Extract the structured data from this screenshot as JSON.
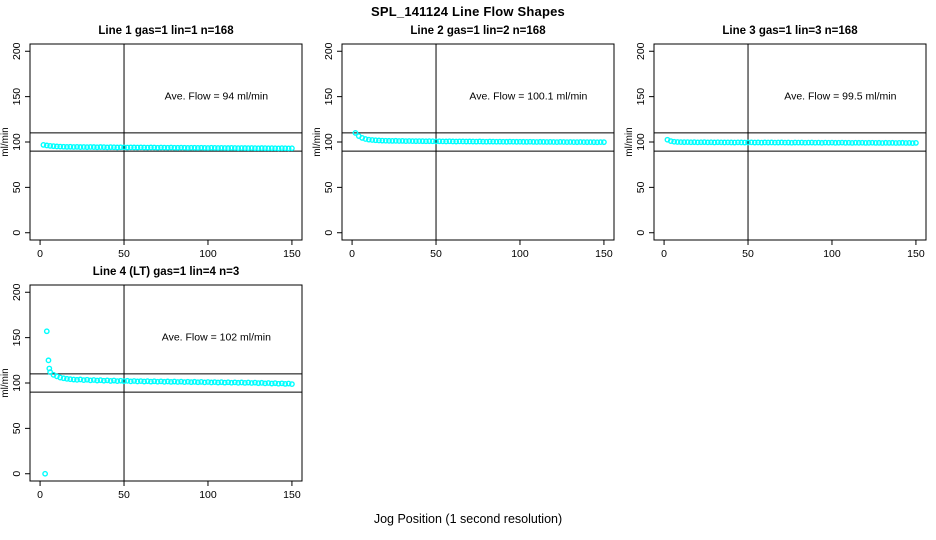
{
  "page": {
    "title": "SPL_141124  Line Flow Shapes",
    "xlabel": "Jog Position (1 second resolution)",
    "background": "#ffffff",
    "axis_color": "#000000",
    "point_color": "#00ffff"
  },
  "chart_data": [
    {
      "type": "scatter",
      "title": "Line 1 gas=1 lin=1 n=168",
      "annotation": "Ave. Flow =  94  ml/min",
      "annotation_x": 105,
      "annotation_y": 150,
      "ylabel": "ml/min",
      "xticks": [
        0,
        50,
        100,
        150
      ],
      "yticks": [
        0,
        50,
        100,
        150,
        200
      ],
      "xlim": [
        -6,
        156
      ],
      "ylim": [
        -8,
        208
      ],
      "vline_x": 50,
      "hlines_y": [
        90,
        110
      ],
      "marker": "open-circle",
      "marker_color": "#00ffff",
      "x_start": 2,
      "x_step": 2,
      "y": [
        96.8,
        96.2,
        95.7,
        95.4,
        95.1,
        94.9,
        94.8,
        94.6,
        94.7,
        94.5,
        94.6,
        94.4,
        94.5,
        94.3,
        94.5,
        94.4,
        94.2,
        94.4,
        94.3,
        94.1,
        94.3,
        94.2,
        94.0,
        94.2,
        94.1,
        93.9,
        94.1,
        94.0,
        93.9,
        94.1,
        93.9,
        93.8,
        94.0,
        93.9,
        93.7,
        93.9,
        93.8,
        93.7,
        93.9,
        93.7,
        93.6,
        93.8,
        93.7,
        93.5,
        93.7,
        93.6,
        93.5,
        93.7,
        93.5,
        93.4,
        93.6,
        93.5,
        93.4,
        93.5,
        93.4,
        93.3,
        93.5,
        93.4,
        93.2,
        93.4,
        93.3,
        93.2,
        93.4,
        93.2,
        93.1,
        93.3,
        93.2,
        93.1,
        93.2,
        93.1,
        93.0,
        93.2,
        93.1,
        93.0,
        93.1
      ],
      "extra_points": []
    },
    {
      "type": "scatter",
      "title": "Line 2 gas=1 lin=2 n=168",
      "annotation": "Ave. Flow =  100.1  ml/min",
      "annotation_x": 105,
      "annotation_y": 150,
      "ylabel": "ml/min",
      "xticks": [
        0,
        50,
        100,
        150
      ],
      "yticks": [
        0,
        50,
        100,
        150,
        200
      ],
      "xlim": [
        -6,
        156
      ],
      "ylim": [
        -8,
        208
      ],
      "vline_x": 50,
      "hlines_y": [
        90,
        110
      ],
      "marker": "open-circle",
      "marker_color": "#00ffff",
      "x_start": 2,
      "x_step": 2,
      "y": [
        110.0,
        106.5,
        104.5,
        103.3,
        102.6,
        102.2,
        101.9,
        101.7,
        101.5,
        101.4,
        101.3,
        101.2,
        101.3,
        101.1,
        101.2,
        101.0,
        101.1,
        101.0,
        100.9,
        101.0,
        100.9,
        100.8,
        100.9,
        100.8,
        100.7,
        100.8,
        100.7,
        100.6,
        100.8,
        100.6,
        100.5,
        100.7,
        100.6,
        100.5,
        100.6,
        100.5,
        100.4,
        100.6,
        100.4,
        100.3,
        100.5,
        100.4,
        100.3,
        100.4,
        100.3,
        100.2,
        100.4,
        100.3,
        100.2,
        100.3,
        100.2,
        100.1,
        100.3,
        100.1,
        100.0,
        100.2,
        100.1,
        100.0,
        100.1,
        100.0,
        99.9,
        100.1,
        100.0,
        99.9,
        100.0,
        99.9,
        99.8,
        100.0,
        99.9,
        99.8,
        99.9,
        99.8,
        99.7,
        99.9,
        99.8
      ],
      "extra_points": []
    },
    {
      "type": "scatter",
      "title": "Line 3 gas=1 lin=3 n=168",
      "annotation": "Ave. Flow =  99.5  ml/min",
      "annotation_x": 105,
      "annotation_y": 150,
      "ylabel": "ml/min",
      "xticks": [
        0,
        50,
        100,
        150
      ],
      "yticks": [
        0,
        50,
        100,
        150,
        200
      ],
      "xlim": [
        -6,
        156
      ],
      "ylim": [
        -8,
        208
      ],
      "vline_x": 50,
      "hlines_y": [
        90,
        110
      ],
      "marker": "open-circle",
      "marker_color": "#00ffff",
      "x_start": 2,
      "x_step": 2,
      "y": [
        102.5,
        101.0,
        100.3,
        100.0,
        99.9,
        99.8,
        99.9,
        99.7,
        99.8,
        99.6,
        99.7,
        99.8,
        99.6,
        99.7,
        99.5,
        99.7,
        99.6,
        99.5,
        99.6,
        99.5,
        99.4,
        99.6,
        99.5,
        99.4,
        99.5,
        99.6,
        99.4,
        99.5,
        99.3,
        99.5,
        99.4,
        99.5,
        99.3,
        99.4,
        99.5,
        99.3,
        99.4,
        99.2,
        99.4,
        99.3,
        99.4,
        99.2,
        99.3,
        99.4,
        99.2,
        99.3,
        99.1,
        99.3,
        99.2,
        99.3,
        99.1,
        99.2,
        99.3,
        99.1,
        99.2,
        99.0,
        99.2,
        99.1,
        99.2,
        99.0,
        99.1,
        99.2,
        99.0,
        99.1,
        98.9,
        99.1,
        99.0,
        99.1,
        98.9,
        99.0,
        99.1,
        98.9,
        99.0,
        98.8,
        99.0
      ],
      "extra_points": []
    },
    {
      "type": "scatter",
      "title": "Line 4 (LT) gas=1 lin=4 n=3",
      "annotation": "Ave. Flow =  102  ml/min",
      "annotation_x": 105,
      "annotation_y": 150,
      "ylabel": "ml/min",
      "xticks": [
        0,
        50,
        100,
        150
      ],
      "yticks": [
        0,
        50,
        100,
        150,
        200
      ],
      "xlim": [
        -6,
        156
      ],
      "ylim": [
        -8,
        208
      ],
      "vline_x": 50,
      "hlines_y": [
        90,
        110
      ],
      "marker": "open-circle",
      "marker_color": "#00ffff",
      "x_start": 6,
      "x_step": 2,
      "y": [
        112.0,
        109.0,
        107.3,
        106.0,
        105.2,
        104.6,
        104.2,
        103.8,
        103.5,
        103.9,
        103.2,
        103.6,
        102.9,
        103.3,
        102.7,
        103.1,
        102.5,
        102.9,
        102.3,
        102.7,
        102.1,
        102.5,
        102.0,
        102.4,
        101.8,
        102.2,
        101.7,
        102.1,
        101.6,
        102.0,
        101.5,
        101.9,
        101.4,
        101.8,
        101.3,
        101.7,
        101.2,
        101.6,
        101.1,
        101.5,
        101.0,
        101.4,
        100.9,
        101.3,
        100.8,
        101.2,
        100.7,
        101.1,
        100.6,
        101.0,
        100.5,
        100.9,
        100.4,
        100.8,
        100.3,
        100.7,
        100.2,
        100.6,
        100.1,
        100.5,
        100.0,
        100.4,
        99.8,
        100.2,
        99.6,
        100.0,
        99.4,
        99.8,
        99.2,
        99.6,
        99.0,
        99.4,
        98.8
      ],
      "extra_points": [
        [
          3,
          0
        ],
        [
          4,
          157
        ],
        [
          5,
          125
        ],
        [
          5.5,
          116
        ]
      ]
    }
  ]
}
